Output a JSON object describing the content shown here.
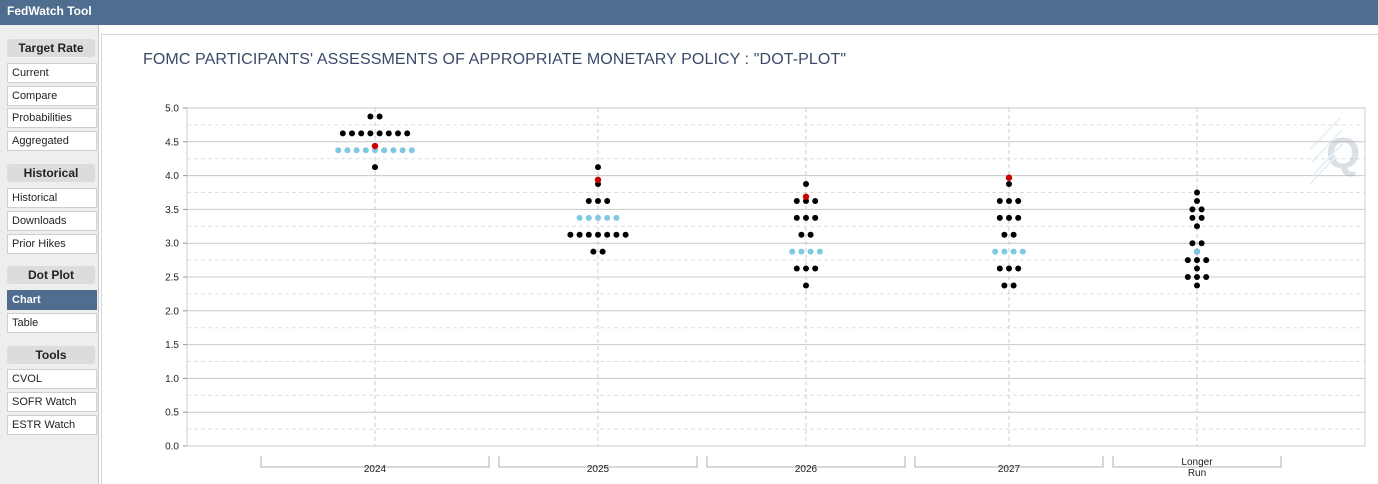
{
  "app": {
    "title": "FedWatch Tool"
  },
  "sidebar": {
    "sections": [
      {
        "title": "Target Rate",
        "items": [
          {
            "label": "Current",
            "active": false
          },
          {
            "label": "Compare",
            "active": false
          },
          {
            "label": "Probabilities",
            "active": false
          },
          {
            "label": "Aggregated",
            "active": false
          }
        ]
      },
      {
        "title": "Historical",
        "items": [
          {
            "label": "Historical",
            "active": false
          },
          {
            "label": "Downloads",
            "active": false
          },
          {
            "label": "Prior Hikes",
            "active": false
          }
        ]
      },
      {
        "title": "Dot Plot",
        "items": [
          {
            "label": "Chart",
            "active": true
          },
          {
            "label": "Table",
            "active": false
          }
        ]
      },
      {
        "title": "Tools",
        "items": [
          {
            "label": "CVOL",
            "active": false
          },
          {
            "label": "SOFR Watch",
            "active": false
          },
          {
            "label": "ESTR Watch",
            "active": false
          }
        ]
      }
    ]
  },
  "chart_data": {
    "type": "scatter",
    "title": "FOMC PARTICIPANTS' ASSESSMENTS OF APPROPRIATE MONETARY POLICY : \"DOT-PLOT\"",
    "xlabel": "",
    "ylabel": "",
    "ylim": [
      0,
      5
    ],
    "yticks": [
      "0.0",
      "0.5",
      "1.0",
      "1.5",
      "2.0",
      "2.5",
      "3.0",
      "3.5",
      "4.0",
      "4.5",
      "5.0"
    ],
    "grid": true,
    "categories": [
      "2024",
      "2025",
      "2026",
      "2027",
      "Longer Run"
    ],
    "dots": {
      "2024": [
        {
          "value": 4.875,
          "count": 2
        },
        {
          "value": 4.625,
          "count": 8
        },
        {
          "value": 4.375,
          "count": 9
        },
        {
          "value": 4.125,
          "count": 1
        }
      ],
      "2025": [
        {
          "value": 4.125,
          "count": 1
        },
        {
          "value": 3.875,
          "count": 1
        },
        {
          "value": 3.625,
          "count": 3
        },
        {
          "value": 3.375,
          "count": 5
        },
        {
          "value": 3.125,
          "count": 7
        },
        {
          "value": 2.875,
          "count": 2
        }
      ],
      "2026": [
        {
          "value": 3.875,
          "count": 1
        },
        {
          "value": 3.625,
          "count": 3
        },
        {
          "value": 3.375,
          "count": 3
        },
        {
          "value": 3.125,
          "count": 2
        },
        {
          "value": 2.875,
          "count": 4
        },
        {
          "value": 2.625,
          "count": 3
        },
        {
          "value": 2.375,
          "count": 1
        }
      ],
      "2027": [
        {
          "value": 3.875,
          "count": 1
        },
        {
          "value": 3.625,
          "count": 3
        },
        {
          "value": 3.375,
          "count": 3
        },
        {
          "value": 3.125,
          "count": 2
        },
        {
          "value": 2.875,
          "count": 4
        },
        {
          "value": 2.625,
          "count": 3
        },
        {
          "value": 2.375,
          "count": 2
        }
      ],
      "Longer Run": [
        {
          "value": 3.75,
          "count": 1
        },
        {
          "value": 3.625,
          "count": 1
        },
        {
          "value": 3.5,
          "count": 2
        },
        {
          "value": 3.375,
          "count": 2
        },
        {
          "value": 3.25,
          "count": 1
        },
        {
          "value": 3.0,
          "count": 2
        },
        {
          "value": 2.875,
          "count": 1
        },
        {
          "value": 2.75,
          "count": 3
        },
        {
          "value": 2.625,
          "count": 1
        },
        {
          "value": 2.5,
          "count": 3
        },
        {
          "value": 2.375,
          "count": 1
        }
      ]
    },
    "market_expectation": [
      {
        "category": "2024",
        "value": 4.375
      },
      {
        "category": "2025",
        "value": 3.375
      },
      {
        "category": "2026",
        "value": 2.875
      },
      {
        "category": "2027",
        "value": 2.875
      },
      {
        "category": "Longer Run",
        "value": 2.875
      }
    ],
    "median": [
      {
        "category": "2024",
        "value": 4.4375
      },
      {
        "category": "2025",
        "value": 3.9375
      },
      {
        "category": "2026",
        "value": 3.6875
      },
      {
        "category": "2027",
        "value": 3.9688
      }
    ],
    "colors": {
      "dot": "#000000",
      "market": "#7ec8e3",
      "median": "#cc0000",
      "header": "#4f6d8f",
      "title": "#3a4a6a"
    }
  }
}
